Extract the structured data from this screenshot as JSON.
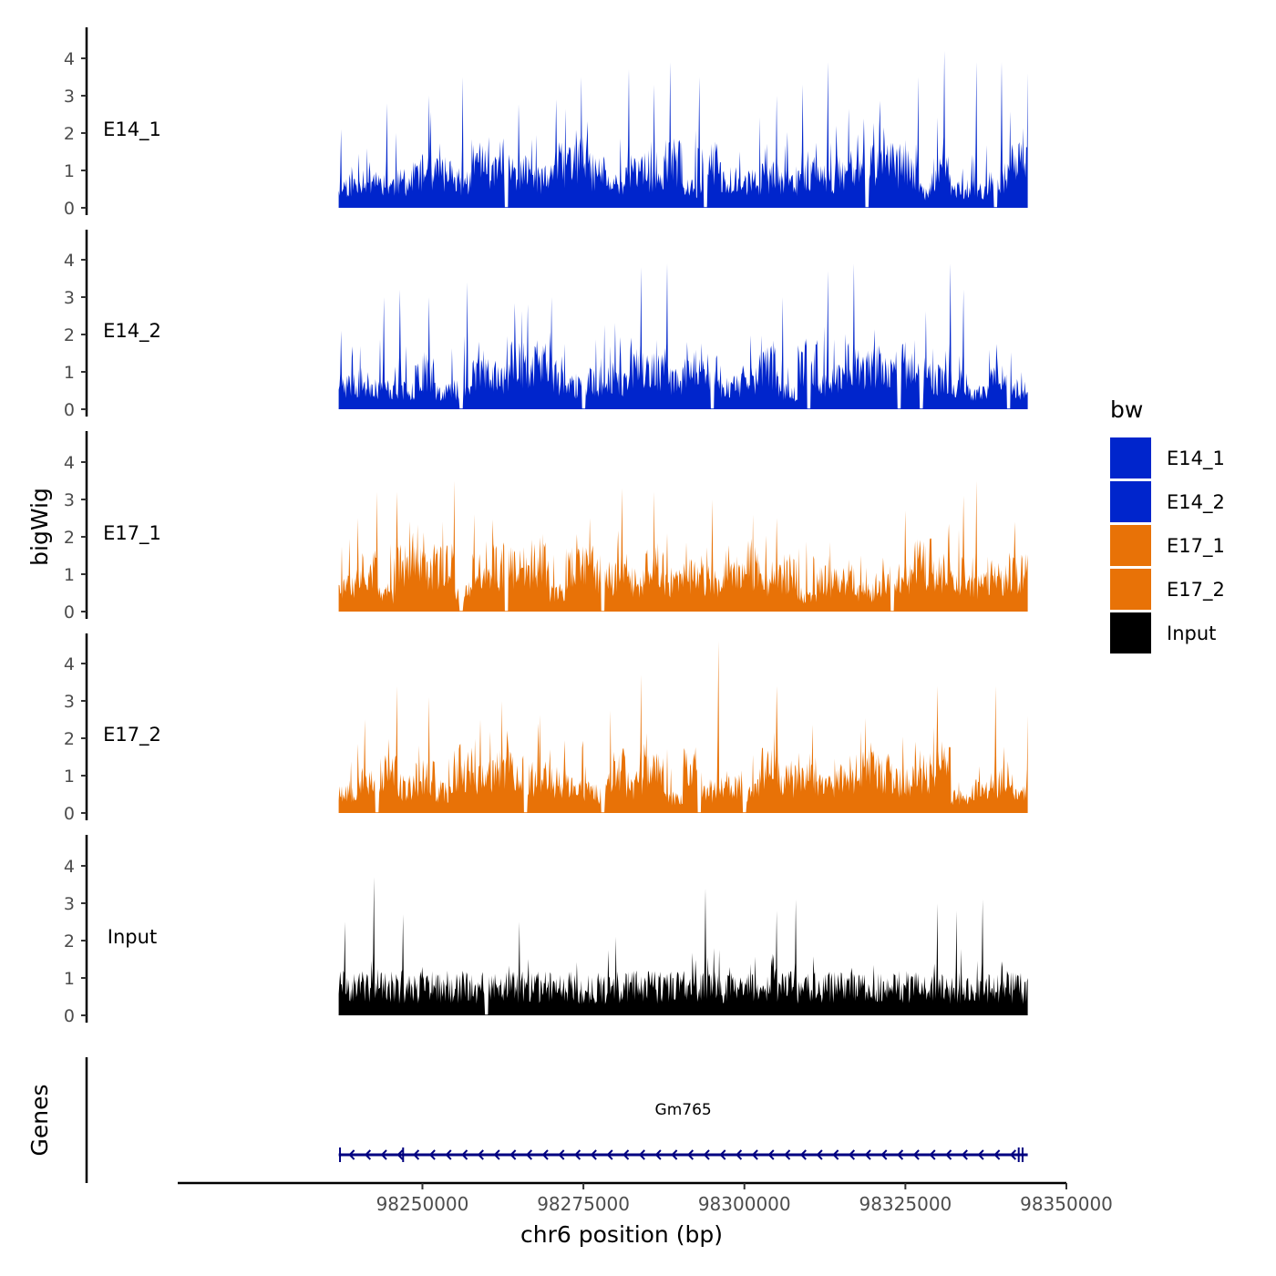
{
  "chart_data": {
    "type": "area",
    "ylabel": "bigWig",
    "xlabel": "chr6 position (bp)",
    "gene_panel_label": "Genes",
    "xlim": [
      98212000,
      98350000
    ],
    "data_range": [
      98237000,
      98344000
    ],
    "x_ticks": [
      98250000,
      98275000,
      98300000,
      98325000,
      98350000
    ],
    "x_tick_labels": [
      "98250000",
      "98275000",
      "98300000",
      "98325000",
      "98350000"
    ],
    "ylim": [
      0,
      4.8
    ],
    "y_ticks": [
      0,
      1,
      2,
      3,
      4
    ],
    "y_tick_labels": [
      "0",
      "1",
      "2",
      "3",
      "4"
    ],
    "legend": {
      "title": "bw",
      "position": "right",
      "entries": [
        {
          "label": "E14_1",
          "color": "#0025cc"
        },
        {
          "label": "E14_2",
          "color": "#0025cc"
        },
        {
          "label": "E17_1",
          "color": "#e87207"
        },
        {
          "label": "E17_2",
          "color": "#e87207"
        },
        {
          "label": "Input",
          "color": "#000000"
        }
      ]
    },
    "series": [
      {
        "name": "E14_1",
        "color": "#0025cc",
        "seed": 11,
        "peaks": [
          [
            98237300,
            2.1
          ],
          [
            98244500,
            2.8
          ],
          [
            98251000,
            3.0
          ],
          [
            98256300,
            3.5
          ],
          [
            98270800,
            2.9
          ],
          [
            98274700,
            3.5
          ],
          [
            98282100,
            3.7
          ],
          [
            98286000,
            3.3
          ],
          [
            98288500,
            3.9
          ],
          [
            98293000,
            3.5
          ],
          [
            98305000,
            3.0
          ],
          [
            98309000,
            3.3
          ],
          [
            98313000,
            3.9
          ],
          [
            98327000,
            3.5
          ],
          [
            98331000,
            4.2
          ],
          [
            98336000,
            3.9
          ],
          [
            98340000,
            3.9
          ],
          [
            98344000,
            3.6
          ]
        ],
        "gaps": [
          98263000,
          98294000,
          98319000,
          98339000
        ]
      },
      {
        "name": "E14_2",
        "color": "#0025cc",
        "seed": 23,
        "peaks": [
          [
            98237300,
            2.1
          ],
          [
            98244000,
            3.0
          ],
          [
            98246500,
            3.2
          ],
          [
            98251000,
            3.0
          ],
          [
            98257000,
            3.4
          ],
          [
            98270000,
            3.0
          ],
          [
            98284000,
            3.8
          ],
          [
            98288000,
            3.9
          ],
          [
            98306000,
            3.0
          ],
          [
            98313000,
            3.7
          ],
          [
            98317000,
            3.9
          ],
          [
            98332000,
            3.9
          ],
          [
            98334000,
            3.2
          ],
          [
            98343000,
            1.0
          ]
        ],
        "gaps": [
          98256000,
          98275000,
          98295000,
          98310000,
          98324000,
          98327500,
          98341000
        ]
      },
      {
        "name": "E17_1",
        "color": "#e87207",
        "seed": 37,
        "peaks": [
          [
            98240000,
            2.5
          ],
          [
            98243000,
            3.2
          ],
          [
            98246000,
            3.2
          ],
          [
            98255000,
            3.5
          ],
          [
            98258000,
            2.6
          ],
          [
            98276000,
            2.5
          ],
          [
            98281000,
            3.3
          ],
          [
            98286000,
            3.2
          ],
          [
            98295000,
            3.0
          ],
          [
            98305000,
            2.5
          ],
          [
            98325000,
            2.7
          ],
          [
            98334000,
            3.1
          ],
          [
            98336000,
            3.5
          ],
          [
            98342000,
            2.4
          ]
        ],
        "gaps": [
          98256000,
          98263000,
          98278000,
          98323000
        ]
      },
      {
        "name": "E17_2",
        "color": "#e87207",
        "seed": 53,
        "peaks": [
          [
            98241000,
            2.5
          ],
          [
            98246000,
            3.4
          ],
          [
            98251000,
            3.1
          ],
          [
            98259000,
            2.5
          ],
          [
            98268000,
            2.4
          ],
          [
            98284000,
            3.7
          ],
          [
            98293000,
            3.4
          ],
          [
            98296000,
            4.6
          ],
          [
            98305000,
            3.4
          ],
          [
            98330000,
            3.4
          ],
          [
            98339000,
            3.4
          ],
          [
            98344000,
            2.6
          ]
        ],
        "gaps": [
          98243000,
          98266000,
          98278000,
          98293000,
          98300000
        ]
      },
      {
        "name": "Input",
        "color": "#000000",
        "seed": 71,
        "peaks": [
          [
            98238000,
            2.5
          ],
          [
            98242500,
            3.7
          ],
          [
            98247000,
            2.7
          ],
          [
            98265000,
            2.5
          ],
          [
            98280000,
            2.1
          ],
          [
            98294000,
            3.4
          ],
          [
            98305000,
            2.8
          ],
          [
            98308000,
            3.1
          ],
          [
            98330000,
            3.0
          ],
          [
            98333000,
            2.8
          ],
          [
            98337000,
            3.1
          ],
          [
            98344000,
            1.0
          ]
        ],
        "gaps": [
          98260000
        ]
      }
    ],
    "genes": [
      {
        "name": "Gm765",
        "start": 98237000,
        "end": 98344000,
        "strand": "-",
        "exons": [
          98237200,
          98247000,
          98342600,
          98343200
        ],
        "color": "#000080"
      }
    ]
  }
}
